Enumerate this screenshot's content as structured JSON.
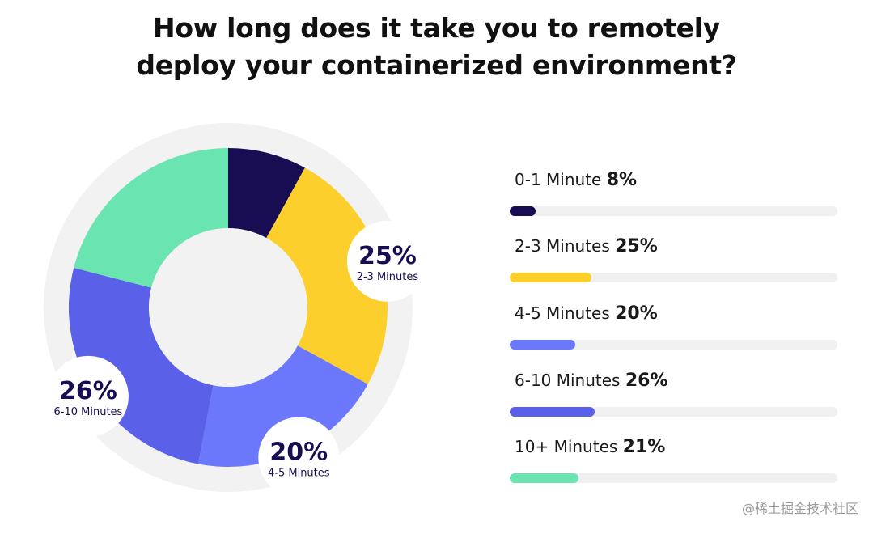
{
  "title_lines": [
    "How long does it take you to remotely",
    "deploy your containerized environment?"
  ],
  "chart_data": {
    "type": "pie",
    "title": "How long does it take you to remotely deploy your containerized environment?",
    "unit": "%",
    "categories": [
      "0-1 Minute",
      "2-3 Minutes",
      "4-5 Minutes",
      "6-10 Minutes",
      "10+ Minutes"
    ],
    "values": [
      8,
      25,
      20,
      26,
      21
    ],
    "colors": [
      "#180d52",
      "#fccf2c",
      "#6c78fc",
      "#5a60e8",
      "#6ae4b0"
    ],
    "callouts": [
      {
        "index": 1,
        "value_label": "25%",
        "category_label": "2-3 Minutes"
      },
      {
        "index": 2,
        "value_label": "20%",
        "category_label": "4-5 Minutes"
      },
      {
        "index": 3,
        "value_label": "26%",
        "category_label": "6-10 Minutes"
      }
    ]
  },
  "legend": [
    {
      "label": "0-1 Minute",
      "pct": "8%",
      "value": 8,
      "color": "#180d52"
    },
    {
      "label": "2-3 Minutes",
      "pct": "25%",
      "value": 25,
      "color": "#fccf2c"
    },
    {
      "label": "4-5 Minutes",
      "pct": "20%",
      "value": 20,
      "color": "#6c78fc"
    },
    {
      "label": "6-10 Minutes",
      "pct": "26%",
      "value": 26,
      "color": "#5a60e8"
    },
    {
      "label": "10+ Minutes",
      "pct": "21%",
      "value": 21,
      "color": "#6ae4b0"
    }
  ],
  "watermark": "@稀土掘金技术社区"
}
